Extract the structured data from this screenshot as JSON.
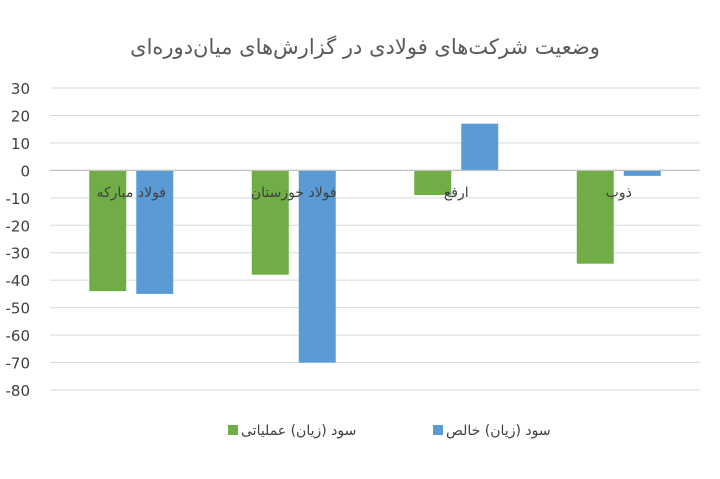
{
  "chart_data": {
    "type": "bar",
    "title": "وضعیت شرکت‌های فولادی در گزارش‌های میان‌دوره‌ای",
    "categories": [
      "فولاد مبارکه",
      "فولاد خوزستان",
      "ارفع",
      "ذوب"
    ],
    "series": [
      {
        "name": "سود (زیان) عملیاتی",
        "values": [
          -44,
          -38,
          -9,
          -34
        ],
        "color": "#70ad47"
      },
      {
        "name": "سود (زیان) خالص",
        "values": [
          -45,
          -70,
          17,
          -2
        ],
        "color": "#5b9bd5"
      }
    ],
    "ylim": [
      -80,
      30
    ],
    "yticks": [
      30,
      20,
      10,
      0,
      -10,
      -20,
      -30,
      -40,
      -50,
      -60,
      -70,
      -80
    ],
    "ytick_labels": [
      "30",
      "20",
      "10",
      "0",
      "-10",
      "-20",
      "-30",
      "-40",
      "-50",
      "-60",
      "-70",
      "-80"
    ],
    "grid": true,
    "legend_position": "bottom",
    "xlabel": "",
    "ylabel": ""
  }
}
